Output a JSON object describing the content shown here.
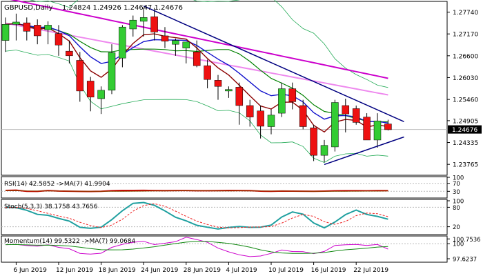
{
  "chart_title": "GBPUSD,Daily",
  "ohlc_readout": "1.24824 1.24926 1.24647 1.24676",
  "price_axis": {
    "ticks": [
      "1.27740",
      "1.27170",
      "1.26600",
      "1.26030",
      "1.25460",
      "1.24905",
      "1.24335",
      "1.23765"
    ],
    "current_price": "1.24676",
    "ylim": [
      1.2348,
      1.2802
    ]
  },
  "date_axis": {
    "ticks": [
      "6 Jun 2019",
      "12 Jun 2019",
      "18 Jun 2019",
      "24 Jun 2019",
      "28 Jun 2019",
      "4 Jul 2019",
      "10 Jul 2019",
      "16 Jul 2019",
      "22 Jul 2019"
    ]
  },
  "chart_data": [
    {
      "type": "candlestick",
      "title": "GBPUSD,Daily",
      "ylim": [
        1.2348,
        1.2802
      ],
      "x": [
        "5 Jun",
        "6 Jun",
        "7 Jun",
        "10 Jun",
        "11 Jun",
        "12 Jun",
        "13 Jun",
        "14 Jun",
        "17 Jun",
        "18 Jun",
        "19 Jun",
        "20 Jun",
        "21 Jun",
        "24 Jun",
        "25 Jun",
        "26 Jun",
        "27 Jun",
        "28 Jun",
        "1 Jul",
        "2 Jul",
        "3 Jul",
        "4 Jul",
        "5 Jul",
        "8 Jul",
        "9 Jul",
        "10 Jul",
        "11 Jul",
        "12 Jul",
        "15 Jul",
        "16 Jul",
        "17 Jul",
        "18 Jul",
        "19 Jul",
        "22 Jul",
        "23 Jul",
        "24 Jul",
        "25 Jul"
      ],
      "open": [
        1.27,
        1.2742,
        1.2746,
        1.274,
        1.2728,
        1.2718,
        1.2672,
        1.2648,
        1.2594,
        1.2548,
        1.257,
        1.2654,
        1.273,
        1.275,
        1.2762,
        1.2712,
        1.269,
        1.268,
        1.267,
        1.2634,
        1.2596,
        1.2568,
        1.2578,
        1.253,
        1.2516,
        1.2475,
        1.251,
        1.2574,
        1.253,
        1.2472,
        1.24,
        1.2422,
        1.253,
        1.2522,
        1.25,
        1.244,
        1.2482
      ],
      "high": [
        1.276,
        1.277,
        1.276,
        1.2755,
        1.275,
        1.274,
        1.27,
        1.267,
        1.2605,
        1.258,
        1.269,
        1.274,
        1.2765,
        1.2785,
        1.2785,
        1.2735,
        1.2705,
        1.2695,
        1.27,
        1.265,
        1.261,
        1.258,
        1.259,
        1.2545,
        1.253,
        1.252,
        1.259,
        1.259,
        1.2545,
        1.248,
        1.244,
        1.2545,
        1.2548,
        1.253,
        1.251,
        1.251,
        1.2493
      ],
      "low": [
        1.267,
        1.27,
        1.27,
        1.269,
        1.269,
        1.266,
        1.264,
        1.254,
        1.2515,
        1.2508,
        1.256,
        1.263,
        1.271,
        1.271,
        1.27,
        1.268,
        1.266,
        1.264,
        1.263,
        1.2575,
        1.2545,
        1.255,
        1.248,
        1.2475,
        1.2444,
        1.2455,
        1.25,
        1.252,
        1.2468,
        1.2385,
        1.2382,
        1.241,
        1.246,
        1.248,
        1.244,
        1.242,
        1.2465
      ],
      "close": [
        1.2742,
        1.2748,
        1.2724,
        1.2712,
        1.274,
        1.2688,
        1.266,
        1.2568,
        1.2552,
        1.257,
        1.2668,
        1.2735,
        1.2753,
        1.276,
        1.2722,
        1.2698,
        1.27,
        1.2696,
        1.2634,
        1.2598,
        1.258,
        1.2572,
        1.253,
        1.25,
        1.2476,
        1.2505,
        1.2574,
        1.254,
        1.2475,
        1.24,
        1.2426,
        1.2538,
        1.2508,
        1.2486,
        1.244,
        1.249,
        1.2467
      ]
    },
    {
      "type": "line",
      "title": "RSI(14) 42.5852 ->MA(7) 41.9904",
      "label": "RSI(14)",
      "value": "42.5852",
      "ma_label": "->MA(7)",
      "ma_value": "41.9904",
      "ticks": [
        "100",
        "70",
        "30"
      ]
    },
    {
      "type": "line",
      "title": "Stoch(5,3,3) 38.1758 43.7656",
      "label": "Stoch(5,3,3)",
      "value": "38.1758",
      "ma_value": "43.7656",
      "ticks": [
        "100",
        "80",
        "20"
      ]
    },
    {
      "type": "line",
      "title": "Momentum(14) 99.5322 ->MA(7) 99.0684",
      "label": "Momentum(14)",
      "value": "99.5322",
      "ma_label": "->MA(7)",
      "ma_value": "99.0684",
      "ticks": [
        "100.7536",
        "100",
        "97.6237"
      ]
    }
  ],
  "colors": {
    "bull": "#33cc33",
    "bear": "#ee1111",
    "ma_fast": "#8b0000",
    "ma_blue": "#1111cc",
    "ma_green": "#008000",
    "ma_pink": "#ee88ee",
    "ma_magenta": "#cc00cc",
    "bollinger": "#22aa55",
    "trendline": "#000080",
    "rsi": "#cc0000",
    "stoch_main": "#20a0a0",
    "stoch_signal": "#ee2222",
    "momentum": "#cc00cc",
    "momentum_ma": "#118811"
  }
}
